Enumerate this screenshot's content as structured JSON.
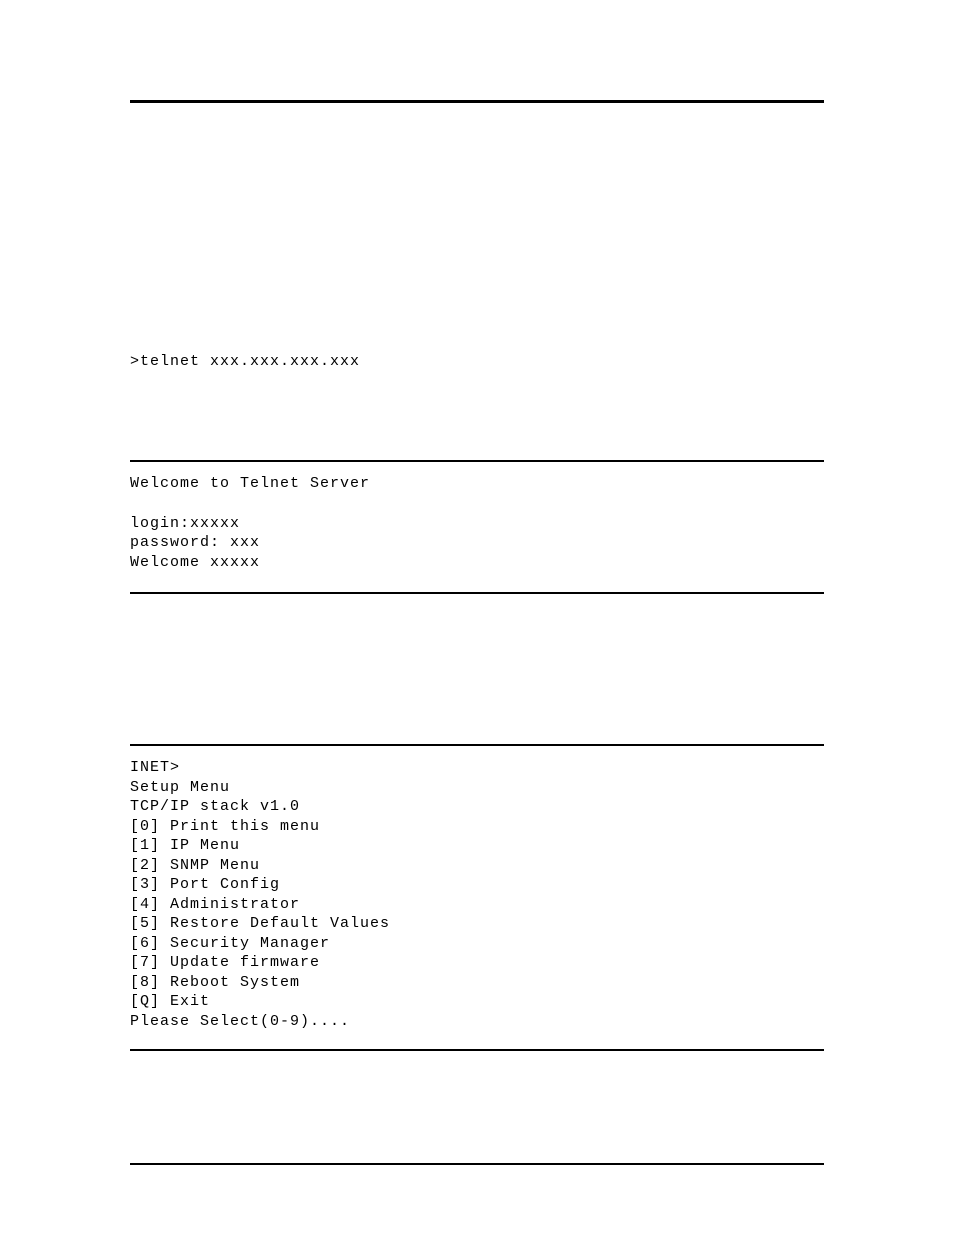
{
  "command": ">telnet xxx.xxx.xxx.xxx",
  "session": {
    "welcome": "Welcome to Telnet Server",
    "login": "login:xxxxx",
    "password": "password: xxx",
    "welcome_user": "Welcome xxxxx"
  },
  "menu": {
    "prompt": "INET>",
    "title": "Setup Menu",
    "version": "TCP/IP stack v1.0",
    "items": [
      "[0] Print this menu",
      "[1] IP Menu",
      "[2] SNMP Menu",
      "[3] Port Config",
      "[4] Administrator",
      "[5] Restore Default Values",
      "[6] Security Manager",
      "[7] Update firmware",
      "[8] Reboot System",
      "[Q] Exit"
    ],
    "select_prompt": "Please Select(0-9)...."
  },
  "styling": {
    "background_color": "#ffffff",
    "text_color": "#000000",
    "rule_color": "#000000",
    "font_family": "Courier New",
    "font_size": 15,
    "line_height": 1.3,
    "letter_spacing": 1
  }
}
